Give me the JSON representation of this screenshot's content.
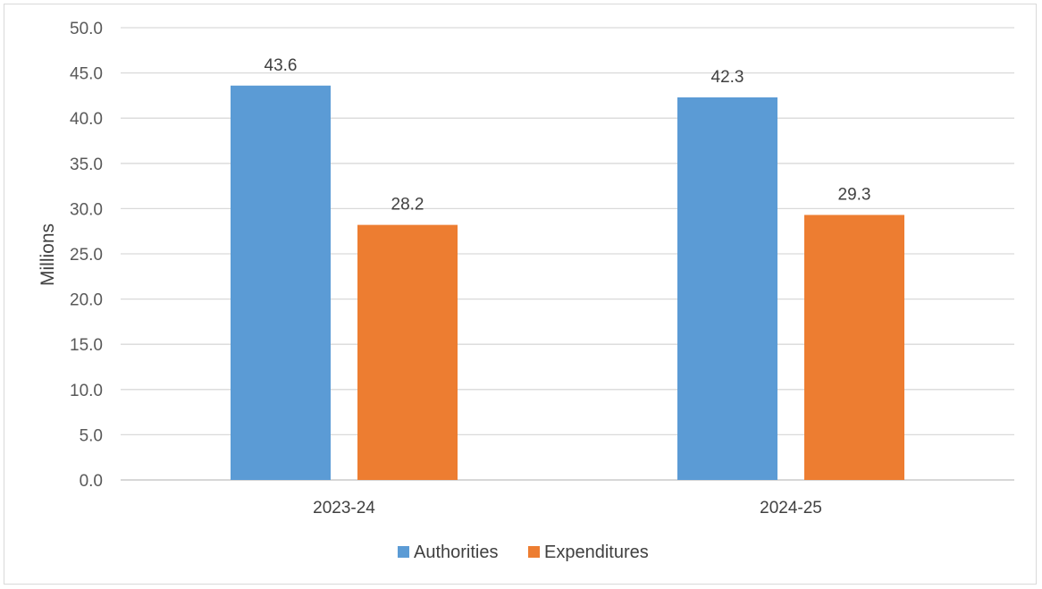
{
  "chart_data": {
    "type": "bar",
    "categories": [
      "2023-24",
      "2024-25"
    ],
    "series": [
      {
        "name": "Authorities",
        "color": "#5b9bd5",
        "values": [
          43.6,
          42.3
        ]
      },
      {
        "name": "Expenditures",
        "color": "#ed7d31",
        "values": [
          28.2,
          29.3
        ]
      }
    ],
    "title": "",
    "xlabel": "",
    "ylabel": "Millions",
    "ylim": [
      0,
      50
    ],
    "yticks": [
      "0.0",
      "5.0",
      "10.0",
      "15.0",
      "20.0",
      "25.0",
      "30.0",
      "35.0",
      "40.0",
      "45.0",
      "50.0"
    ],
    "grid": true,
    "legend_position": "bottom",
    "data_labels": true
  }
}
